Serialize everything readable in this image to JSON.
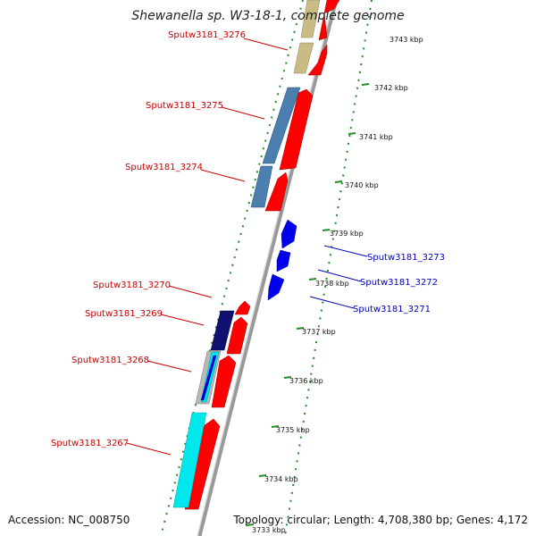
{
  "title": "Shewanella sp. W3-18-1, complete genome",
  "accession": "Accession: NC_008750",
  "topology": "Topology: circular; Length: 4,708,380 bp; Genes: 4,172",
  "colors": {
    "forward_label": "#cc0000",
    "reverse_label": "#0000bb",
    "forward_cds": "#ff0000",
    "reverse_cds": "#0000ee",
    "backbone": "#888888",
    "tick": "#228b22",
    "cog_khaki": "#c8bc84",
    "cog_steelblue": "#4a7fb0",
    "cog_navy": "#101070",
    "cog_cyan": "#00e8ec",
    "cog_blue": "#0000dd",
    "cog_gray": "#b8b8b8"
  },
  "ticks": [
    {
      "label": "3743 kbp"
    },
    {
      "label": "3742 kbp"
    },
    {
      "label": "3741 kbp"
    },
    {
      "label": "3740 kbp"
    },
    {
      "label": "3739 kbp"
    },
    {
      "label": "3738 kbp"
    },
    {
      "label": "3737 kbp"
    },
    {
      "label": "3736 kbp"
    },
    {
      "label": "3735 kbp"
    },
    {
      "label": "3734 kbp"
    },
    {
      "label": "3733 kbp"
    }
  ],
  "genes": [
    {
      "label": "Sputw3181_3276",
      "strand": "forward"
    },
    {
      "label": "Sputw3181_3275",
      "strand": "forward"
    },
    {
      "label": "Sputw3181_3274",
      "strand": "forward"
    },
    {
      "label": "Sputw3181_3273",
      "strand": "reverse"
    },
    {
      "label": "Sputw3181_3272",
      "strand": "reverse"
    },
    {
      "label": "Sputw3181_3271",
      "strand": "reverse"
    },
    {
      "label": "Sputw3181_3270",
      "strand": "forward"
    },
    {
      "label": "Sputw3181_3269",
      "strand": "forward"
    },
    {
      "label": "Sputw3181_3268",
      "strand": "forward"
    },
    {
      "label": "Sputw3181_3267",
      "strand": "forward"
    }
  ]
}
